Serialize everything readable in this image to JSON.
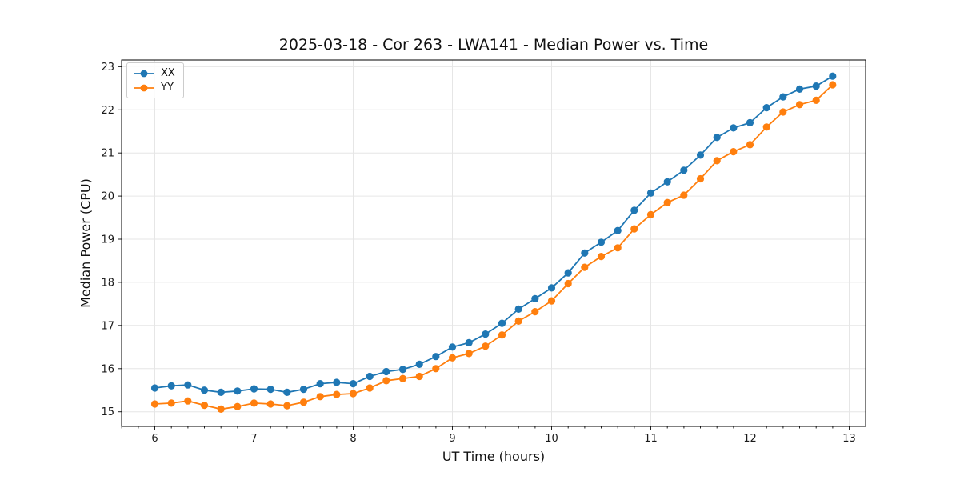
{
  "page": {
    "background": "#ffffff"
  },
  "chart_data": {
    "type": "line",
    "title": "2025-03-18 - Cor 263 - LWA141 - Median Power vs. Time",
    "xlabel": "UT Time (hours)",
    "ylabel": "Median Power (CPU)",
    "xlim": [
      5.665,
      13.165
    ],
    "ylim": [
      14.66,
      23.155
    ],
    "x_ticks": [
      6,
      7,
      8,
      9,
      10,
      11,
      12,
      13
    ],
    "y_ticks": [
      15,
      16,
      17,
      18,
      19,
      20,
      21,
      22,
      23
    ],
    "x_minor_step": 0.1667,
    "grid": true,
    "legend": {
      "position": "upper-left",
      "entries": [
        "XX",
        "YY"
      ]
    },
    "x": [
      6.0,
      6.167,
      6.333,
      6.5,
      6.667,
      6.833,
      7.0,
      7.167,
      7.333,
      7.5,
      7.667,
      7.833,
      8.0,
      8.167,
      8.333,
      8.5,
      8.667,
      8.833,
      9.0,
      9.167,
      9.333,
      9.5,
      9.667,
      9.833,
      10.0,
      10.167,
      10.333,
      10.5,
      10.667,
      10.833,
      11.0,
      11.167,
      11.333,
      11.5,
      11.667,
      11.833,
      12.0,
      12.167,
      12.333,
      12.5,
      12.667,
      12.833
    ],
    "series": [
      {
        "name": "XX",
        "color": "#1f77b4",
        "values": [
          15.55,
          15.6,
          15.62,
          15.5,
          15.45,
          15.48,
          15.53,
          15.52,
          15.45,
          15.52,
          15.65,
          15.68,
          15.65,
          15.82,
          15.93,
          15.98,
          16.1,
          16.28,
          16.5,
          16.6,
          16.8,
          17.05,
          17.38,
          17.62,
          17.87,
          18.22,
          18.68,
          18.93,
          19.2,
          19.67,
          20.07,
          20.33,
          20.6,
          20.95,
          21.36,
          21.58,
          21.7,
          22.05,
          22.3,
          22.48,
          22.55,
          22.78
        ]
      },
      {
        "name": "YY",
        "color": "#ff7f0e",
        "values": [
          15.18,
          15.2,
          15.25,
          15.15,
          15.06,
          15.12,
          15.2,
          15.18,
          15.14,
          15.22,
          15.35,
          15.4,
          15.42,
          15.55,
          15.72,
          15.77,
          15.82,
          16.0,
          16.25,
          16.35,
          16.52,
          16.78,
          17.1,
          17.32,
          17.57,
          17.97,
          18.35,
          18.6,
          18.8,
          19.24,
          19.57,
          19.85,
          20.02,
          20.4,
          20.82,
          21.03,
          21.19,
          21.6,
          21.95,
          22.12,
          22.22,
          22.58
        ]
      }
    ]
  }
}
